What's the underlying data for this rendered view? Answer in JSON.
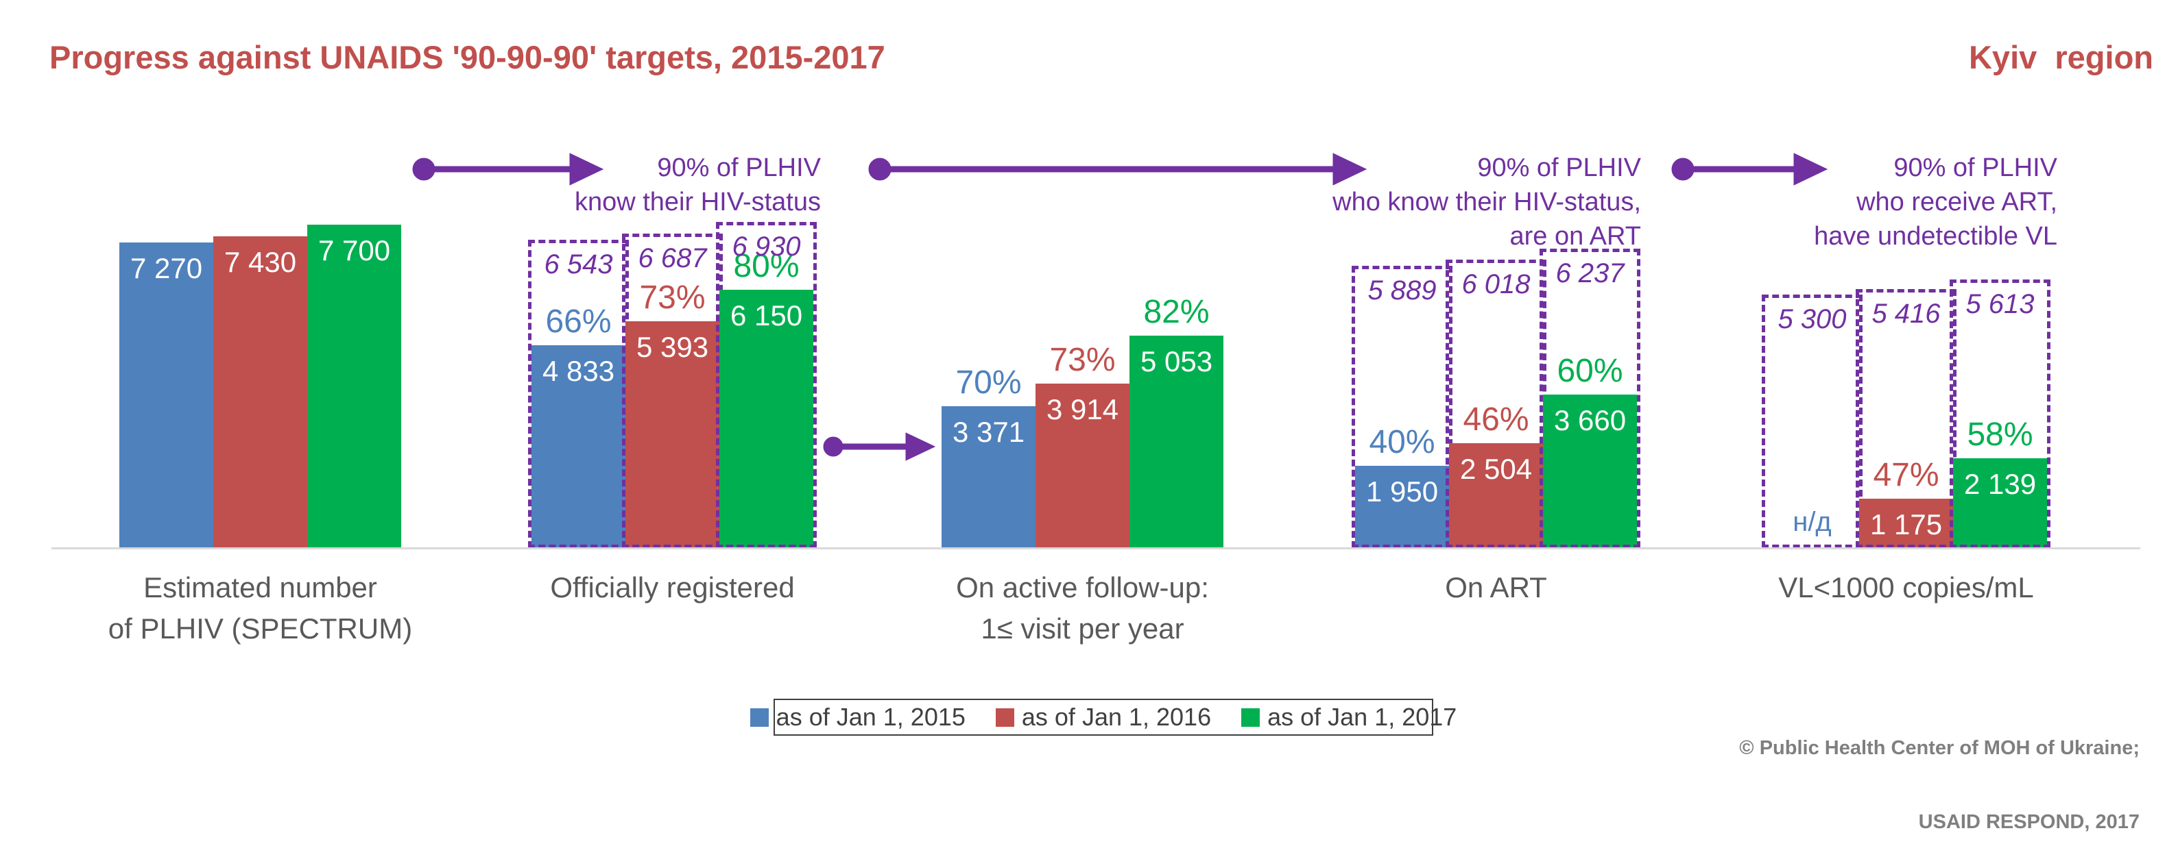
{
  "header": {
    "title": "Progress against UNAIDS '90-90-90' targets, 2015-2017",
    "region": "Kyiv  region"
  },
  "colors": {
    "series_2015": "#4F81BD",
    "series_2016": "#C0504D",
    "series_2017": "#00B050",
    "target_purple": "#7030A0",
    "title_red": "#C0504D",
    "category_gray": "#595959",
    "axis_gray": "#D9D9D9"
  },
  "chart_data": {
    "type": "bar",
    "title": "Progress against UNAIDS '90-90-90' targets, 2015-2017",
    "region": "Kyiv region",
    "grid": false,
    "legend_position": "bottom",
    "series_names": [
      "as of Jan 1, 2015",
      "as of Jan 1, 2016",
      "as of Jan 1, 2017"
    ],
    "series_colors": [
      "#4F81BD",
      "#C0504D",
      "#00B050"
    ],
    "groups": [
      {
        "label_lines": [
          "Estimated number",
          "of PLHIV (SPECTRUM)"
        ],
        "values": [
          7270,
          7430,
          7700
        ],
        "value_labels": [
          "7 270",
          "7 430",
          "7 700"
        ],
        "percents": [
          null,
          null,
          null
        ],
        "targets": null,
        "target_labels": null
      },
      {
        "label_lines": [
          "Officially registered"
        ],
        "values": [
          4833,
          5393,
          6150
        ],
        "value_labels": [
          "4 833",
          "5 393",
          "6 150"
        ],
        "percents": [
          "66%",
          "73%",
          "80%"
        ],
        "targets": [
          6543,
          6687,
          6930
        ],
        "target_labels": [
          "6 543",
          "6 687",
          "6 930"
        ]
      },
      {
        "label_lines": [
          "On active follow-up:",
          "1≤ visit per year"
        ],
        "values": [
          3371,
          3914,
          5053
        ],
        "value_labels": [
          "3 371",
          "3 914",
          "5 053"
        ],
        "percents": [
          "70%",
          "73%",
          "82%"
        ],
        "targets": null,
        "target_labels": null
      },
      {
        "label_lines": [
          "On ART"
        ],
        "values": [
          1950,
          2504,
          3660
        ],
        "value_labels": [
          "1 950",
          "2 504",
          "3 660"
        ],
        "percents": [
          "40%",
          "46%",
          "60%"
        ],
        "targets": [
          5889,
          6018,
          6237
        ],
        "target_labels": [
          "5 889",
          "6 018",
          "6 237"
        ]
      },
      {
        "label_lines": [
          "VL<1000 copies/mL"
        ],
        "values": [
          null,
          1175,
          2139
        ],
        "value_labels": [
          "н/д",
          "1 175",
          "2 139"
        ],
        "percents": [
          null,
          "47%",
          "58%"
        ],
        "targets": [
          5300,
          5416,
          5613
        ],
        "target_labels": [
          "5 300",
          "5 416",
          "5 613"
        ]
      }
    ],
    "annotations": [
      {
        "lines": [
          "90% of PLHIV",
          "know their HIV-status"
        ]
      },
      {
        "lines": [
          "90% of PLHIV",
          "who know their HIV-status,",
          "are on ART"
        ]
      },
      {
        "lines": [
          "90% of PLHIV",
          "who receive ART,",
          "have undetectible VL"
        ]
      }
    ]
  },
  "legend": {
    "items": [
      {
        "label": "as of Jan 1, 2015",
        "color": "#4F81BD"
      },
      {
        "label": "as of Jan 1, 2016",
        "color": "#C0504D"
      },
      {
        "label": "as of Jan 1, 2017",
        "color": "#00B050"
      }
    ]
  },
  "footer": {
    "lines": [
      "© Public Health Center of MOH of Ukraine;",
      "USAID RESPOND, 2017"
    ]
  }
}
